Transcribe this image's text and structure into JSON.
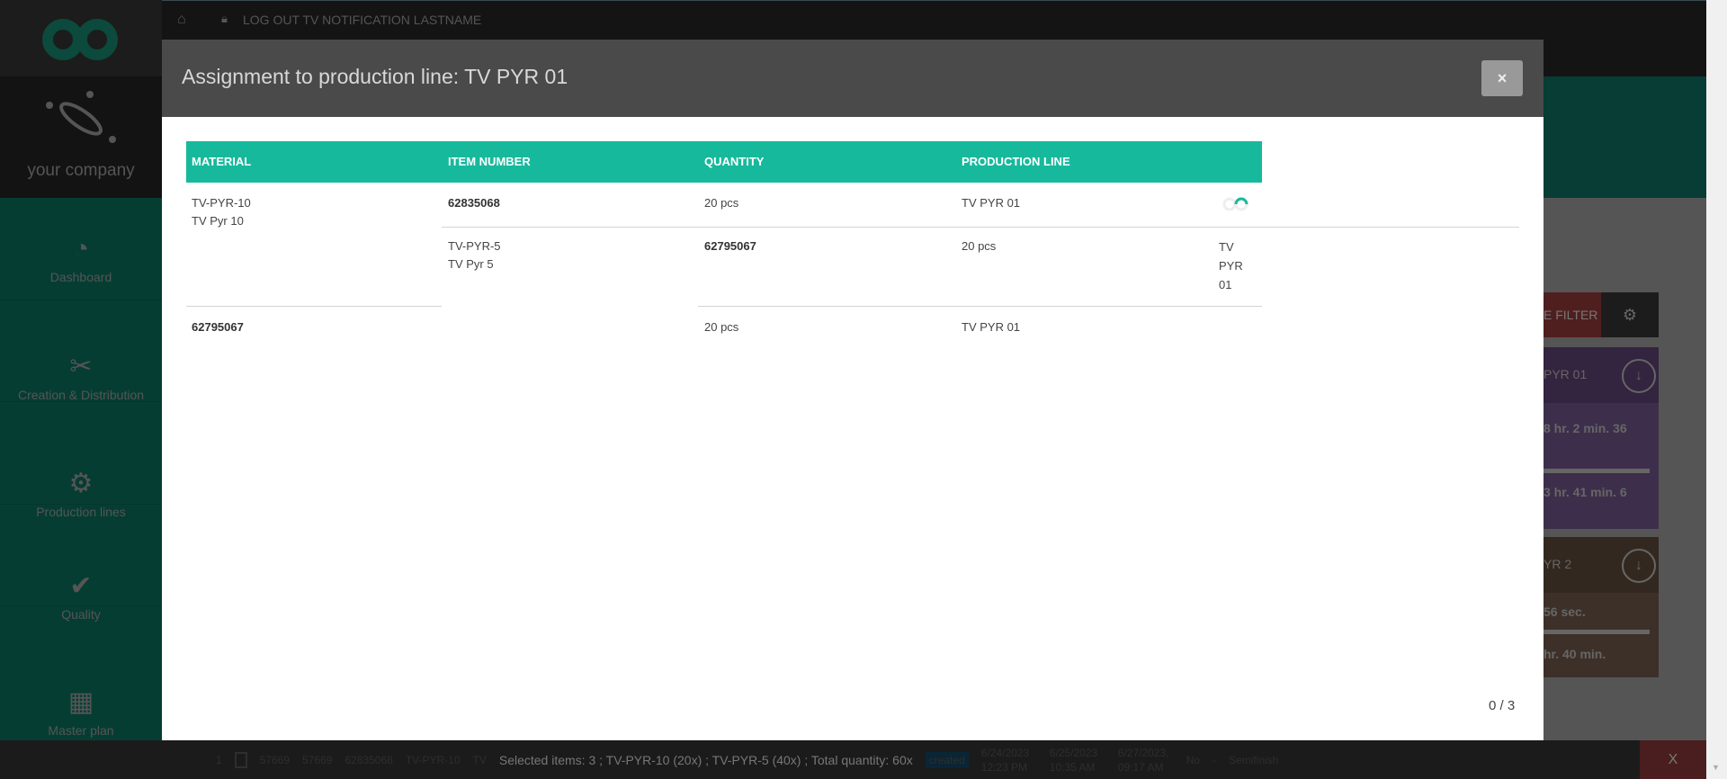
{
  "topbar": {
    "logout_label": "LOG OUT TV NOTIFICATION LASTNAME"
  },
  "brand": {
    "company": "your company"
  },
  "sidebar": {
    "items": [
      {
        "label": "Dashboard",
        "icon": "gauge-icon"
      },
      {
        "label": "Creation & Distribution",
        "icon": "ticket-x-icon"
      },
      {
        "label": "Production lines",
        "icon": "conveyor-robot-icon"
      },
      {
        "label": "Quality",
        "icon": "check-icon"
      },
      {
        "label": "Master plan",
        "icon": "calendar-icon"
      }
    ]
  },
  "background": {
    "filter_label": "E FILTER",
    "cards": [
      {
        "title": "PYR 01",
        "line1": "8 hr. 2 min. 36",
        "line2": "3 hr. 41 min. 6"
      },
      {
        "title": "YR 2",
        "line1": "56 sec.",
        "line2": "hr. 40 min."
      }
    ],
    "row": [
      "1",
      "57669",
      "57669",
      "62835068",
      "TV-PYR-10",
      "TV",
      "6/24/2023 12:23 PM",
      "6/25/2023 10:35 AM",
      "created",
      "6/27/2023, 09:17 AM",
      "No",
      "-",
      "Semifinish"
    ],
    "delete_label": "X"
  },
  "modal": {
    "title": "Assignment to production line: TV PYR 01",
    "close_label": "×",
    "columns": [
      "MATERIAL",
      "ITEM NUMBER",
      "QUANTITY",
      "PRODUCTION LINE"
    ],
    "rows": [
      {
        "material_code": "TV-PYR-10",
        "material_name": "TV Pyr 10",
        "item_number": "62835068",
        "quantity": "20 pcs",
        "line": "TV PYR 01"
      },
      {
        "material_code": "TV-PYR-5",
        "material_name": "TV Pyr 5",
        "item_number": "62795067",
        "quantity": "20 pcs",
        "line": "TV PYR 01"
      },
      {
        "item_number": "62795067",
        "quantity": "20 pcs",
        "line": "TV PYR 01"
      }
    ],
    "progress": "0 / 3"
  },
  "status": {
    "selected_text": "Selected items: 3 ; TV-PYR-10 (20x) ; TV-PYR-5 (40x) ; Total quantity: 60x"
  },
  "colors": {
    "accent": "#17b99c",
    "header": "#4a4a4a",
    "sidebar": "#063d33"
  }
}
